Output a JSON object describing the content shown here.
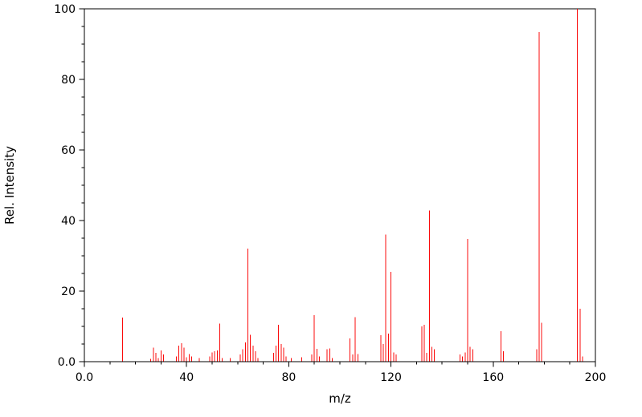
{
  "chart_data": {
    "type": "bar",
    "subtype": "mass-spectrum-stick-plot",
    "title": "",
    "xlabel": "m/z",
    "ylabel": "Rel. Intensity",
    "xlim": [
      0,
      200
    ],
    "ylim": [
      0,
      100
    ],
    "grid": false,
    "legend": "none",
    "axis_color": "#000000",
    "background_color": "#ffffff",
    "peak_color": "#fb0b0b",
    "xticks": {
      "values": [
        0,
        40,
        80,
        120,
        160,
        200
      ],
      "labels": [
        "0.0",
        "40",
        "80",
        "120",
        "160",
        "200"
      ]
    },
    "yticks": {
      "values": [
        0,
        20,
        40,
        60,
        80,
        100
      ],
      "labels": [
        "0.0",
        "20",
        "40",
        "60",
        "80",
        "100"
      ]
    },
    "minor_x_step": 10,
    "minor_y_step": 5,
    "peaks": [
      [
        15,
        12.5
      ],
      [
        26,
        0.8
      ],
      [
        27,
        4.0
      ],
      [
        28,
        2.5
      ],
      [
        29,
        1.0
      ],
      [
        30,
        3.2
      ],
      [
        31,
        2.0
      ],
      [
        36,
        1.5
      ],
      [
        37,
        4.5
      ],
      [
        38,
        5.2
      ],
      [
        39,
        4.0
      ],
      [
        40,
        1.2
      ],
      [
        41,
        2.2
      ],
      [
        42,
        1.5
      ],
      [
        45,
        1.0
      ],
      [
        49,
        1.5
      ],
      [
        50,
        2.6
      ],
      [
        51,
        3.0
      ],
      [
        52,
        3.2
      ],
      [
        53,
        10.8
      ],
      [
        54,
        1.0
      ],
      [
        57,
        1.0
      ],
      [
        61,
        2.0
      ],
      [
        62,
        3.5
      ],
      [
        63,
        5.5
      ],
      [
        64,
        32.0
      ],
      [
        65,
        7.6
      ],
      [
        66,
        4.5
      ],
      [
        67,
        3.0
      ],
      [
        68,
        1.0
      ],
      [
        74,
        2.5
      ],
      [
        75,
        4.6
      ],
      [
        76,
        10.5
      ],
      [
        77,
        5.0
      ],
      [
        78,
        4.0
      ],
      [
        79,
        1.5
      ],
      [
        81,
        1.0
      ],
      [
        85,
        1.2
      ],
      [
        89,
        2.0
      ],
      [
        90,
        13.2
      ],
      [
        91,
        3.6
      ],
      [
        92,
        1.5
      ],
      [
        95,
        3.5
      ],
      [
        96,
        3.8
      ],
      [
        97,
        1.0
      ],
      [
        104,
        6.6
      ],
      [
        105,
        2.0
      ],
      [
        106,
        12.6
      ],
      [
        107,
        2.2
      ],
      [
        116,
        7.5
      ],
      [
        117,
        5.0
      ],
      [
        118,
        36.0
      ],
      [
        119,
        8.0
      ],
      [
        120,
        25.5
      ],
      [
        121,
        2.6
      ],
      [
        122,
        2.0
      ],
      [
        132,
        10.0
      ],
      [
        133,
        10.4
      ],
      [
        134,
        2.5
      ],
      [
        135,
        42.8
      ],
      [
        136,
        4.2
      ],
      [
        137,
        3.5
      ],
      [
        147,
        2.0
      ],
      [
        148,
        1.5
      ],
      [
        149,
        2.6
      ],
      [
        150,
        34.8
      ],
      [
        151,
        4.2
      ],
      [
        152,
        3.5
      ],
      [
        163,
        8.6
      ],
      [
        164,
        3.0
      ],
      [
        177,
        3.5
      ],
      [
        178,
        93.4
      ],
      [
        179,
        11.0
      ],
      [
        193,
        100.0
      ],
      [
        194,
        15.0
      ],
      [
        195,
        1.5
      ]
    ]
  }
}
